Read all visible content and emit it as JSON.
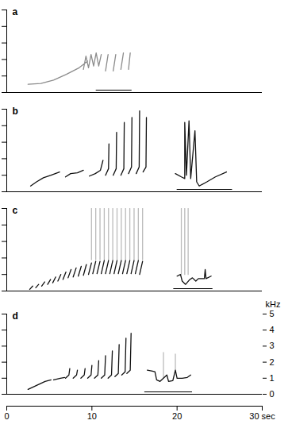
{
  "chart_data": [
    {
      "type": "line",
      "title": "a",
      "xlim": [
        0,
        30
      ],
      "ylim": [
        0,
        5
      ],
      "yticks": [
        0,
        1,
        2,
        3,
        4,
        5
      ],
      "tick_labels": false,
      "underline": [
        10.5,
        14.7
      ],
      "series": [
        {
          "color": "#8c8c8c",
          "x": [
            2.5,
            4,
            5.5,
            7,
            8.5,
            9.5,
            null,
            9,
            9.3,
            9.6,
            9.9,
            10.2,
            10.5,
            10.8,
            11.1,
            null,
            11.6,
            11.9,
            null,
            12.5,
            12.8,
            null,
            13.4,
            13.7,
            null,
            14.3,
            14.5
          ],
          "values": [
            0.5,
            0.55,
            0.75,
            1.1,
            1.5,
            1.9,
            null,
            1.4,
            2.2,
            1.5,
            2.3,
            1.6,
            2.4,
            1.6,
            2.3,
            null,
            1.3,
            2.3,
            null,
            1.3,
            2.3,
            null,
            1.4,
            2.4,
            null,
            1.4,
            2.4
          ]
        }
      ]
    },
    {
      "type": "line",
      "title": "b",
      "xlim": [
        0,
        30
      ],
      "ylim": [
        0,
        5
      ],
      "yticks": [
        0,
        1,
        2,
        3,
        4,
        5
      ],
      "tick_labels": false,
      "underline": [
        20.0,
        26.5
      ],
      "series": [
        {
          "color": "#111111",
          "x": [
            2.8,
            3.5,
            4.3,
            5.2,
            6.2,
            null,
            6.9,
            7.5,
            8.3,
            9.0,
            null,
            9.7,
            10.4,
            11.0,
            11.3,
            null,
            11.6,
            11.95,
            12.0,
            null,
            12.5,
            12.85,
            12.9,
            null,
            13.4,
            13.75,
            13.8,
            null,
            14.3,
            14.65,
            14.7,
            null,
            15.2,
            15.55,
            15.6,
            null,
            16.0,
            16.35,
            16.4,
            null,
            19.8,
            20.5,
            20.9,
            20.9,
            21.1,
            21.4,
            21.6,
            22.1,
            22.3,
            22.6,
            23.5,
            24.5,
            25.8
          ],
          "values": [
            0.35,
            0.6,
            0.85,
            1.0,
            1.2,
            null,
            0.9,
            1.1,
            1.15,
            1.3,
            null,
            0.95,
            1.1,
            1.3,
            1.9,
            null,
            1.0,
            1.4,
            2.9,
            null,
            1.0,
            1.4,
            3.6,
            null,
            1.0,
            1.4,
            4.2,
            null,
            1.1,
            1.5,
            4.5,
            null,
            1.1,
            1.5,
            4.9,
            null,
            1.2,
            1.5,
            4.5,
            null,
            1.1,
            0.9,
            0.8,
            4.2,
            1.0,
            4.3,
            0.8,
            3.7,
            0.6,
            0.35,
            0.6,
            0.9,
            1.2
          ]
        }
      ]
    },
    {
      "type": "line",
      "title": "c",
      "xlim": [
        0,
        30
      ],
      "ylim": [
        0,
        5
      ],
      "yticks": [
        0,
        1,
        2,
        3,
        4,
        5
      ],
      "tick_labels": false,
      "underline": [
        19.6,
        24.2
      ],
      "series": [
        {
          "color": "#bbbbbb",
          "x": [
            9.95,
            9.95,
            null,
            10.45,
            10.45,
            null,
            10.95,
            10.95,
            null,
            11.45,
            11.45,
            null,
            11.95,
            11.95,
            null,
            12.45,
            12.45,
            null,
            12.95,
            12.95,
            null,
            13.45,
            13.45,
            null,
            13.95,
            13.95,
            null,
            14.45,
            14.45,
            null,
            14.95,
            14.95,
            null,
            15.45,
            15.45,
            null,
            15.95,
            15.95,
            null,
            20.5,
            20.5,
            null,
            20.9,
            20.9,
            null,
            21.3,
            21.3
          ],
          "values": [
            1.9,
            5.0,
            null,
            1.9,
            5.0,
            null,
            1.9,
            5.0,
            null,
            1.9,
            5.0,
            null,
            1.9,
            5.0,
            null,
            1.9,
            5.0,
            null,
            1.9,
            5.0,
            null,
            1.9,
            5.0,
            null,
            1.9,
            5.0,
            null,
            1.9,
            5.0,
            null,
            1.9,
            5.0,
            null,
            1.9,
            5.0,
            null,
            1.9,
            5.0,
            null,
            1.0,
            5.0,
            null,
            1.0,
            5.0,
            null,
            1.0,
            5.0
          ]
        },
        {
          "color": "#111111",
          "x": [
            2.7,
            3.05,
            null,
            3.4,
            3.75,
            null,
            4.1,
            4.45,
            null,
            4.8,
            5.15,
            null,
            5.4,
            5.75,
            null,
            6.0,
            6.35,
            null,
            6.6,
            6.95,
            null,
            7.2,
            7.55,
            null,
            7.8,
            8.15,
            null,
            8.4,
            8.75,
            null,
            9.0,
            9.35,
            null,
            9.6,
            9.95,
            null,
            10.1,
            10.45,
            null,
            10.6,
            10.95,
            null,
            11.1,
            11.45,
            null,
            11.6,
            11.95,
            null,
            12.1,
            12.45,
            null,
            12.6,
            12.95,
            null,
            13.1,
            13.45,
            null,
            13.6,
            13.95,
            null,
            14.1,
            14.45,
            null,
            14.6,
            14.95,
            null,
            15.1,
            15.45,
            null,
            15.6,
            15.95,
            null,
            20.0,
            20.4,
            20.6,
            21.0,
            21.5,
            21.8,
            22.2,
            22.5,
            23.2,
            23.3,
            23.4,
            24.0
          ],
          "values": [
            0.1,
            0.3,
            null,
            0.2,
            0.4,
            null,
            0.3,
            0.55,
            null,
            0.4,
            0.7,
            null,
            0.5,
            0.85,
            null,
            0.6,
            1.0,
            null,
            0.7,
            1.15,
            null,
            0.8,
            1.3,
            null,
            0.85,
            1.4,
            null,
            0.9,
            1.5,
            null,
            0.95,
            1.6,
            null,
            1.0,
            1.7,
            null,
            1.05,
            1.8,
            null,
            1.05,
            1.8,
            null,
            1.05,
            1.85,
            null,
            1.05,
            1.85,
            null,
            1.05,
            1.85,
            null,
            1.05,
            1.85,
            null,
            1.05,
            1.85,
            null,
            1.05,
            1.85,
            null,
            1.05,
            1.85,
            null,
            1.05,
            1.85,
            null,
            1.05,
            1.85,
            null,
            1.0,
            1.8,
            null,
            0.9,
            1.0,
            0.6,
            0.4,
            0.7,
            0.8,
            0.6,
            0.75,
            0.75,
            1.3,
            0.75,
            0.9
          ]
        }
      ]
    },
    {
      "type": "line",
      "title": "d",
      "xlim": [
        0,
        30
      ],
      "ylim": [
        0,
        5
      ],
      "yticks": [
        0,
        1,
        2,
        3,
        4,
        5
      ],
      "xticks": [
        0,
        10,
        20,
        {
          "value": 30,
          "label": "30 sec"
        }
      ],
      "ylabel": "kHz",
      "underline": [
        16.2,
        21.8
      ],
      "series": [
        {
          "color": "#bbbbbb",
          "x": [
            18.4,
            18.4,
            null,
            19.8,
            19.8
          ],
          "values": [
            1.0,
            2.6,
            null,
            1.5,
            2.5
          ]
        },
        {
          "color": "#111111",
          "x": [
            2.5,
            3.5,
            4.5,
            5.2,
            null,
            5.5,
            6.3,
            6.8,
            null,
            6.9,
            7.3,
            7.4,
            null,
            7.8,
            8.2,
            8.3,
            null,
            8.7,
            9.1,
            9.2,
            null,
            9.5,
            9.9,
            10.0,
            null,
            10.3,
            10.7,
            10.8,
            null,
            11.1,
            11.5,
            11.6,
            null,
            11.9,
            12.3,
            12.4,
            null,
            12.7,
            13.1,
            13.2,
            null,
            13.5,
            13.9,
            14.0,
            null,
            14.1,
            14.5,
            14.6,
            null,
            16.5,
            17.0,
            17.4,
            17.6,
            18.0,
            18.4,
            18.8,
            19.0,
            19.5,
            19.8,
            20.0,
            20.6,
            21.2,
            21.6
          ],
          "values": [
            0.3,
            0.55,
            0.8,
            0.9,
            null,
            0.9,
            1.0,
            1.05,
            null,
            1.0,
            1.2,
            1.6,
            null,
            1.0,
            1.2,
            1.5,
            null,
            1.0,
            1.2,
            1.6,
            null,
            1.0,
            1.2,
            1.8,
            null,
            1.0,
            1.2,
            2.1,
            null,
            1.0,
            1.2,
            2.4,
            null,
            1.0,
            1.2,
            2.7,
            null,
            1.1,
            1.3,
            3.1,
            null,
            1.2,
            1.4,
            3.5,
            null,
            1.3,
            1.5,
            3.8,
            null,
            1.5,
            1.45,
            1.4,
            0.9,
            0.8,
            1.0,
            1.2,
            0.8,
            0.85,
            1.5,
            1.0,
            1.0,
            1.05,
            1.2
          ]
        }
      ]
    }
  ]
}
